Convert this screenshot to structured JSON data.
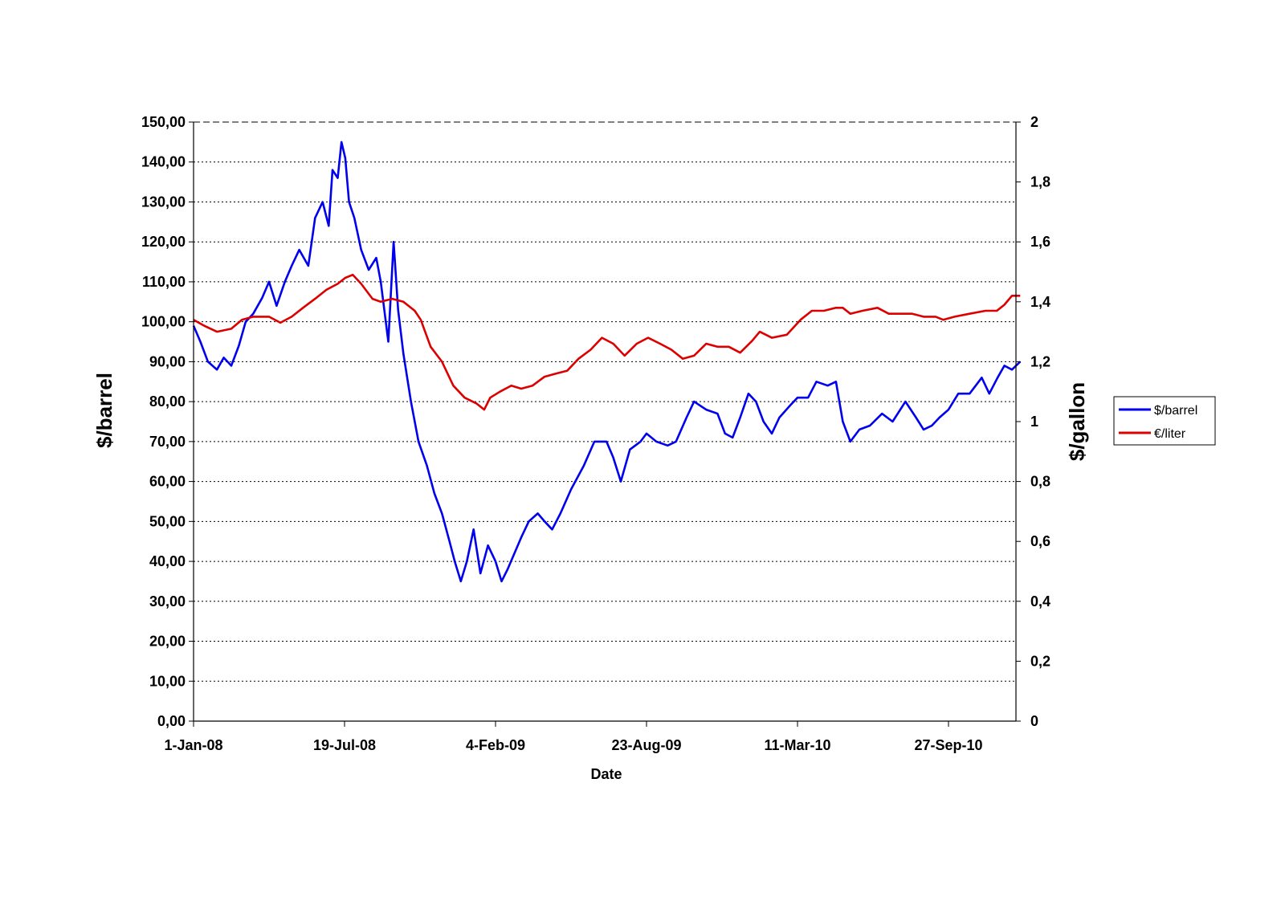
{
  "chart_data": {
    "type": "line",
    "title": "",
    "xlabel": "Date",
    "ylabel": "$/barrel",
    "y2label": "$/gallon",
    "x_ticks": [
      "1-Jan-08",
      "19-Jul-08",
      "4-Feb-09",
      "23-Aug-09",
      "11-Mar-10",
      "27-Sep-10"
    ],
    "x_tick_dates": [
      "2008-01-01",
      "2008-07-19",
      "2009-02-04",
      "2009-08-23",
      "2010-03-11",
      "2010-09-27"
    ],
    "xlim": [
      "2008-01-01",
      "2010-12-31"
    ],
    "ylim": [
      0,
      150
    ],
    "y2lim": [
      0,
      2
    ],
    "y_ticks": [
      "0,00",
      "10,00",
      "20,00",
      "30,00",
      "40,00",
      "50,00",
      "60,00",
      "70,00",
      "80,00",
      "90,00",
      "100,00",
      "110,00",
      "120,00",
      "130,00",
      "140,00",
      "150,00"
    ],
    "y2_ticks": [
      "0",
      "0,2",
      "0,4",
      "0,6",
      "0,8",
      "1",
      "1,2",
      "1,4",
      "1,6",
      "1,8",
      "2"
    ],
    "grid": "horizontal dotted",
    "legend_position": "right",
    "series": [
      {
        "name": "$/barrel",
        "axis": "left",
        "color": "#0000ee",
        "points": [
          [
            "2008-01-01",
            99
          ],
          [
            "2008-01-10",
            95
          ],
          [
            "2008-01-20",
            90
          ],
          [
            "2008-02-01",
            88
          ],
          [
            "2008-02-10",
            91
          ],
          [
            "2008-02-20",
            89
          ],
          [
            "2008-03-01",
            94
          ],
          [
            "2008-03-10",
            100
          ],
          [
            "2008-03-20",
            102
          ],
          [
            "2008-04-01",
            106
          ],
          [
            "2008-04-10",
            110
          ],
          [
            "2008-04-20",
            104
          ],
          [
            "2008-05-01",
            110
          ],
          [
            "2008-05-10",
            114
          ],
          [
            "2008-05-20",
            118
          ],
          [
            "2008-06-01",
            114
          ],
          [
            "2008-06-10",
            126
          ],
          [
            "2008-06-20",
            130
          ],
          [
            "2008-06-28",
            124
          ],
          [
            "2008-07-03",
            138
          ],
          [
            "2008-07-10",
            136
          ],
          [
            "2008-07-15",
            145
          ],
          [
            "2008-07-20",
            141
          ],
          [
            "2008-07-25",
            130
          ],
          [
            "2008-08-01",
            126
          ],
          [
            "2008-08-10",
            118
          ],
          [
            "2008-08-20",
            113
          ],
          [
            "2008-08-30",
            116
          ],
          [
            "2008-09-05",
            110
          ],
          [
            "2008-09-15",
            95
          ],
          [
            "2008-09-22",
            120
          ],
          [
            "2008-09-28",
            103
          ],
          [
            "2008-10-05",
            92
          ],
          [
            "2008-10-15",
            80
          ],
          [
            "2008-10-25",
            70
          ],
          [
            "2008-11-05",
            64
          ],
          [
            "2008-11-15",
            57
          ],
          [
            "2008-11-25",
            52
          ],
          [
            "2008-12-05",
            45
          ],
          [
            "2008-12-12",
            40
          ],
          [
            "2008-12-20",
            35
          ],
          [
            "2008-12-28",
            40
          ],
          [
            "2009-01-06",
            48
          ],
          [
            "2009-01-15",
            37
          ],
          [
            "2009-01-25",
            44
          ],
          [
            "2009-02-04",
            40
          ],
          [
            "2009-02-12",
            35
          ],
          [
            "2009-02-20",
            38
          ],
          [
            "2009-03-01",
            42
          ],
          [
            "2009-03-10",
            46
          ],
          [
            "2009-03-20",
            50
          ],
          [
            "2009-04-01",
            52
          ],
          [
            "2009-04-10",
            50
          ],
          [
            "2009-04-20",
            48
          ],
          [
            "2009-05-01",
            52
          ],
          [
            "2009-05-15",
            58
          ],
          [
            "2009-06-01",
            64
          ],
          [
            "2009-06-15",
            70
          ],
          [
            "2009-07-01",
            70
          ],
          [
            "2009-07-10",
            66
          ],
          [
            "2009-07-20",
            60
          ],
          [
            "2009-08-01",
            68
          ],
          [
            "2009-08-15",
            70
          ],
          [
            "2009-08-23",
            72
          ],
          [
            "2009-09-05",
            70
          ],
          [
            "2009-09-20",
            69
          ],
          [
            "2009-10-01",
            70
          ],
          [
            "2009-10-15",
            76
          ],
          [
            "2009-10-25",
            80
          ],
          [
            "2009-11-10",
            78
          ],
          [
            "2009-11-25",
            77
          ],
          [
            "2009-12-05",
            72
          ],
          [
            "2009-12-15",
            71
          ],
          [
            "2009-12-25",
            76
          ],
          [
            "2010-01-05",
            82
          ],
          [
            "2010-01-15",
            80
          ],
          [
            "2010-01-25",
            75
          ],
          [
            "2010-02-05",
            72
          ],
          [
            "2010-02-15",
            76
          ],
          [
            "2010-03-01",
            79
          ],
          [
            "2010-03-11",
            81
          ],
          [
            "2010-03-25",
            81
          ],
          [
            "2010-04-05",
            85
          ],
          [
            "2010-04-20",
            84
          ],
          [
            "2010-05-01",
            85
          ],
          [
            "2010-05-10",
            75
          ],
          [
            "2010-05-20",
            70
          ],
          [
            "2010-06-01",
            73
          ],
          [
            "2010-06-15",
            74
          ],
          [
            "2010-07-01",
            77
          ],
          [
            "2010-07-15",
            75
          ],
          [
            "2010-08-01",
            80
          ],
          [
            "2010-08-15",
            76
          ],
          [
            "2010-08-25",
            73
          ],
          [
            "2010-09-05",
            74
          ],
          [
            "2010-09-15",
            76
          ],
          [
            "2010-09-27",
            78
          ],
          [
            "2010-10-10",
            82
          ],
          [
            "2010-10-25",
            82
          ],
          [
            "2010-11-10",
            86
          ],
          [
            "2010-11-20",
            82
          ],
          [
            "2010-12-01",
            86
          ],
          [
            "2010-12-10",
            89
          ],
          [
            "2010-12-20",
            88
          ],
          [
            "2010-12-31",
            90
          ]
        ]
      },
      {
        "name": "€/liter",
        "axis": "right",
        "color": "#dd0000",
        "points": [
          [
            "2008-01-01",
            1.34
          ],
          [
            "2008-01-15",
            1.32
          ],
          [
            "2008-02-01",
            1.3
          ],
          [
            "2008-02-20",
            1.31
          ],
          [
            "2008-03-05",
            1.34
          ],
          [
            "2008-03-20",
            1.35
          ],
          [
            "2008-04-10",
            1.35
          ],
          [
            "2008-04-25",
            1.33
          ],
          [
            "2008-05-10",
            1.35
          ],
          [
            "2008-05-25",
            1.38
          ],
          [
            "2008-06-10",
            1.41
          ],
          [
            "2008-06-25",
            1.44
          ],
          [
            "2008-07-10",
            1.46
          ],
          [
            "2008-07-20",
            1.48
          ],
          [
            "2008-07-30",
            1.49
          ],
          [
            "2008-08-10",
            1.46
          ],
          [
            "2008-08-25",
            1.41
          ],
          [
            "2008-09-05",
            1.4
          ],
          [
            "2008-09-20",
            1.41
          ],
          [
            "2008-10-05",
            1.4
          ],
          [
            "2008-10-20",
            1.37
          ],
          [
            "2008-10-28",
            1.34
          ],
          [
            "2008-11-10",
            1.25
          ],
          [
            "2008-11-25",
            1.2
          ],
          [
            "2008-12-10",
            1.12
          ],
          [
            "2008-12-25",
            1.08
          ],
          [
            "2009-01-10",
            1.06
          ],
          [
            "2009-01-20",
            1.04
          ],
          [
            "2009-01-28",
            1.08
          ],
          [
            "2009-02-10",
            1.1
          ],
          [
            "2009-02-25",
            1.12
          ],
          [
            "2009-03-10",
            1.11
          ],
          [
            "2009-03-25",
            1.12
          ],
          [
            "2009-04-10",
            1.15
          ],
          [
            "2009-04-25",
            1.16
          ],
          [
            "2009-05-10",
            1.17
          ],
          [
            "2009-05-25",
            1.21
          ],
          [
            "2009-06-10",
            1.24
          ],
          [
            "2009-06-25",
            1.28
          ],
          [
            "2009-07-10",
            1.26
          ],
          [
            "2009-07-25",
            1.22
          ],
          [
            "2009-08-10",
            1.26
          ],
          [
            "2009-08-25",
            1.28
          ],
          [
            "2009-09-10",
            1.26
          ],
          [
            "2009-09-25",
            1.24
          ],
          [
            "2009-10-10",
            1.21
          ],
          [
            "2009-10-25",
            1.22
          ],
          [
            "2009-11-10",
            1.26
          ],
          [
            "2009-11-25",
            1.25
          ],
          [
            "2009-12-10",
            1.25
          ],
          [
            "2009-12-25",
            1.23
          ],
          [
            "2010-01-10",
            1.27
          ],
          [
            "2010-01-20",
            1.3
          ],
          [
            "2010-02-05",
            1.28
          ],
          [
            "2010-02-25",
            1.29
          ],
          [
            "2010-03-15",
            1.34
          ],
          [
            "2010-03-30",
            1.37
          ],
          [
            "2010-04-15",
            1.37
          ],
          [
            "2010-05-01",
            1.38
          ],
          [
            "2010-05-10",
            1.38
          ],
          [
            "2010-05-20",
            1.36
          ],
          [
            "2010-06-05",
            1.37
          ],
          [
            "2010-06-25",
            1.38
          ],
          [
            "2010-07-10",
            1.36
          ],
          [
            "2010-07-25",
            1.36
          ],
          [
            "2010-08-10",
            1.36
          ],
          [
            "2010-08-25",
            1.35
          ],
          [
            "2010-09-10",
            1.35
          ],
          [
            "2010-09-20",
            1.34
          ],
          [
            "2010-10-05",
            1.35
          ],
          [
            "2010-10-25",
            1.36
          ],
          [
            "2010-11-15",
            1.37
          ],
          [
            "2010-11-30",
            1.37
          ],
          [
            "2010-12-10",
            1.39
          ],
          [
            "2010-12-20",
            1.42
          ],
          [
            "2010-12-31",
            1.42
          ]
        ]
      }
    ]
  }
}
